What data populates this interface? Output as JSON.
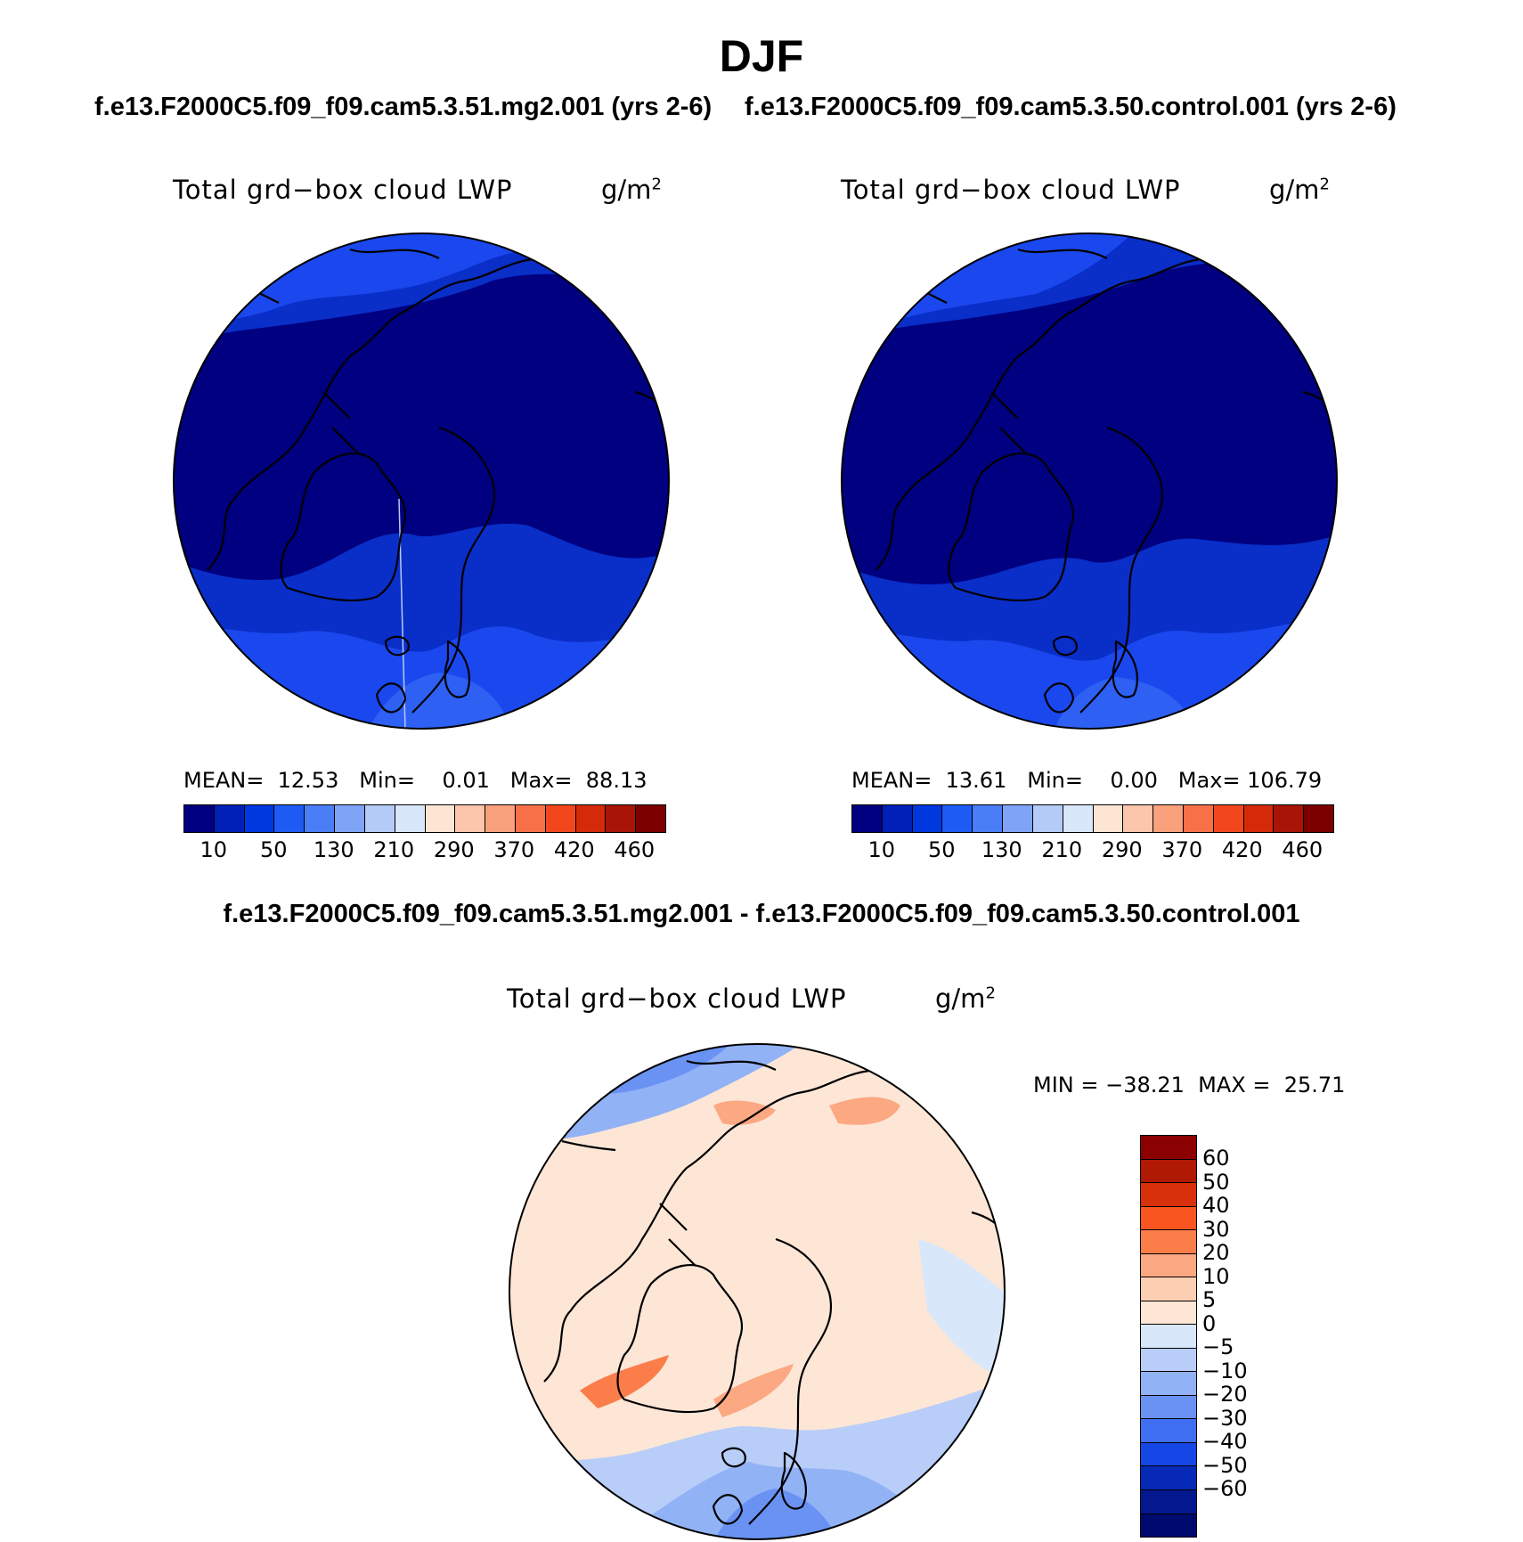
{
  "figure": {
    "season": "DJF",
    "case_a_title": "f.e13.F2000C5.f09_f09.cam5.3.51.mg2.001 (yrs 2-6)",
    "case_b_title": "f.e13.F2000C5.f09_f09.cam5.3.50.control.001 (yrs 2-6)",
    "diff_title": "f.e13.F2000C5.f09_f09.cam5.3.51.mg2.001 - f.e13.F2000C5.f09_f09.cam5.3.50.control.001"
  },
  "panels": [
    {
      "variable": "Total grd−box cloud LWP",
      "units_base": "g/m",
      "units_exp": "2",
      "mean_label": "MEAN=",
      "mean_value": "12.53",
      "min_label": "Min=",
      "min_value": "0.01",
      "max_label": "Max=",
      "max_value": "88.13"
    },
    {
      "variable": "Total grd−box cloud LWP",
      "units_base": "g/m",
      "units_exp": "2",
      "mean_label": "MEAN=",
      "mean_value": "13.61",
      "min_label": "Min=",
      "min_value": "0.00",
      "max_label": "Max=",
      "max_value": "106.79"
    }
  ],
  "diff_panel": {
    "variable": "Total grd−box cloud LWP",
    "units_base": "g/m",
    "units_exp": "2",
    "minmax_text": "MIN = −38.21  MAX =  25.71"
  },
  "colorbar_abs": {
    "colors": [
      "#000080",
      "#0020b8",
      "#0038e0",
      "#1e5bf5",
      "#4a7ef7",
      "#7fa4f7",
      "#b4caf7",
      "#d9e7fb",
      "#fde5d3",
      "#fbc6ac",
      "#f9a07c",
      "#f77048",
      "#f2471c",
      "#d52a0a",
      "#a81506",
      "#7c0000"
    ],
    "tick_labels": [
      "10",
      "50",
      "130",
      "210",
      "290",
      "370",
      "420",
      "460"
    ]
  },
  "colorbar_diff": {
    "colors_top_to_bottom": [
      "#8b0000",
      "#b01a05",
      "#d8300a",
      "#f85520",
      "#fb7d4a",
      "#fca882",
      "#fdcfb2",
      "#fde6d6",
      "#d9e7fb",
      "#b8cdf8",
      "#92b2f6",
      "#6a92f3",
      "#3f6ff0",
      "#1547e6",
      "#0629b8",
      "#03188f",
      "#000a6e"
    ],
    "tick_labels": [
      "60",
      "50",
      "40",
      "30",
      "20",
      "10",
      "5",
      "0",
      "−5",
      "−10",
      "−20",
      "−30",
      "−40",
      "−50",
      "−60"
    ]
  },
  "map_features": [
    "coastline-outline",
    "polar-stereographic-projection"
  ]
}
